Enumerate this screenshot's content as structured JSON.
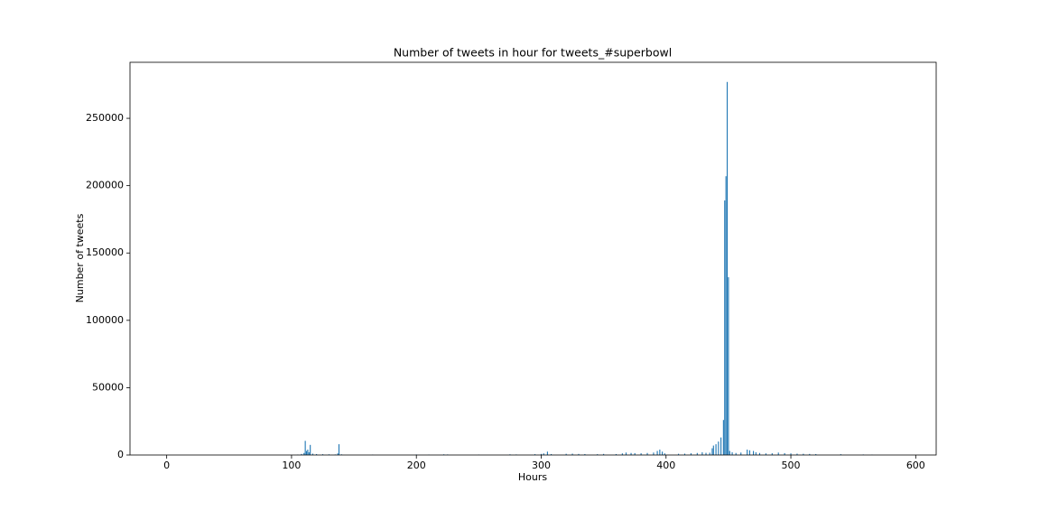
{
  "chart_data": {
    "type": "bar",
    "title": "Number of tweets in hour for tweets_#superbowl",
    "x_label": "Hours",
    "y_label": "Number of tweets",
    "color": "#1f77b4",
    "x": [
      105,
      108,
      110,
      111,
      112,
      113,
      114,
      115,
      117,
      120,
      125,
      130,
      135,
      137,
      138,
      140,
      165,
      200,
      210,
      222,
      225,
      250,
      275,
      280,
      295,
      300,
      302,
      305,
      308,
      320,
      325,
      330,
      335,
      345,
      350,
      360,
      365,
      368,
      372,
      375,
      380,
      385,
      390,
      393,
      395,
      397,
      399,
      410,
      415,
      420,
      425,
      429,
      432,
      435,
      437,
      438,
      440,
      442,
      444,
      446,
      447,
      448,
      449,
      450,
      451,
      453,
      456,
      460,
      465,
      467,
      470,
      472,
      475,
      480,
      485,
      490,
      495,
      500,
      505,
      510,
      515,
      520,
      540,
      558,
      565
    ],
    "values": [
      300,
      800,
      1500,
      10500,
      3000,
      4000,
      2000,
      7500,
      1000,
      700,
      600,
      500,
      400,
      1200,
      8000,
      500,
      300,
      400,
      300,
      500,
      400,
      300,
      500,
      400,
      600,
      800,
      1200,
      2500,
      700,
      900,
      1000,
      800,
      700,
      600,
      800,
      700,
      1200,
      1800,
      1500,
      1400,
      1300,
      1500,
      1800,
      3000,
      4000,
      2500,
      1200,
      900,
      1000,
      1300,
      1500,
      2000,
      1600,
      1700,
      5000,
      7000,
      8000,
      10000,
      13000,
      26000,
      189000,
      207000,
      277000,
      132000,
      3000,
      2000,
      1500,
      1800,
      4000,
      3500,
      3000,
      2000,
      1500,
      1200,
      1300,
      1800,
      1400,
      1200,
      1000,
      900,
      800,
      700,
      600,
      400,
      300
    ],
    "xlim": [
      -29.4,
      616.4
    ],
    "xticks": [
      0,
      100,
      200,
      300,
      400,
      500,
      600
    ],
    "ylim": [
      0,
      291600
    ],
    "yticks": [
      0,
      50000,
      100000,
      150000,
      200000,
      250000
    ]
  }
}
